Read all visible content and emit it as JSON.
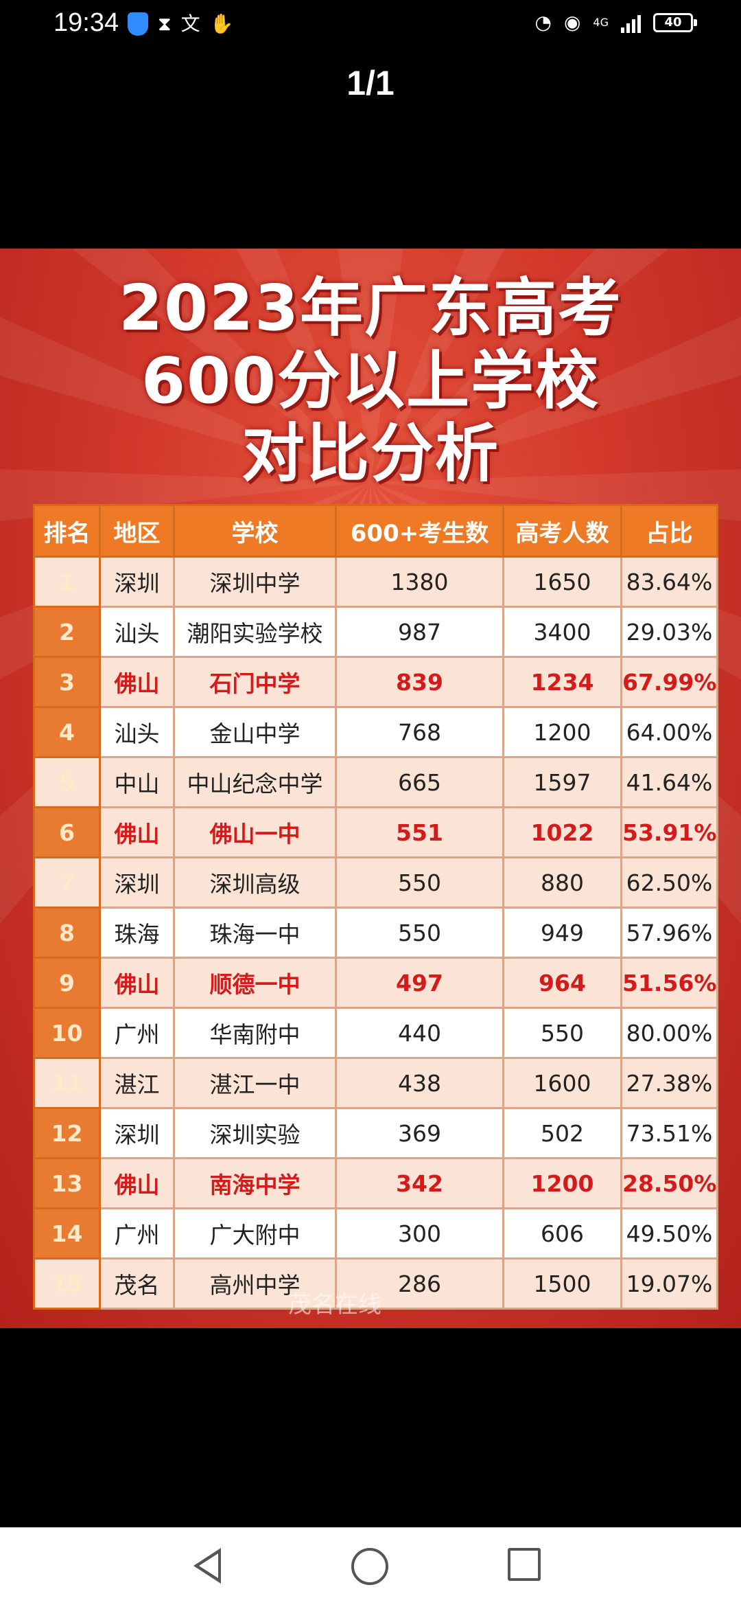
{
  "status_bar": {
    "time": "19:34",
    "network": "4G",
    "battery": "40",
    "icons": [
      "shield-icon",
      "hourglass-icon",
      "translate-icon",
      "hand-icon",
      "speed-icon",
      "eye-icon",
      "signal-icon",
      "battery-icon"
    ]
  },
  "viewer": {
    "counter": "1/1"
  },
  "poster": {
    "title_line1": "2023年广东高考",
    "title_line2": "600分以上学校",
    "title_line3": "对比分析",
    "watermark": "茂名在线",
    "headers": [
      "排名",
      "地区",
      "学校",
      "600+考生数",
      "高考人数",
      "占比"
    ],
    "rows": [
      {
        "rank": "1",
        "region": "深圳",
        "school": "深圳中学",
        "count600": "1380",
        "total": "1650",
        "ratio": "83.64%",
        "highlight": false
      },
      {
        "rank": "2",
        "region": "汕头",
        "school": "潮阳实验学校",
        "count600": "987",
        "total": "3400",
        "ratio": "29.03%",
        "highlight": false
      },
      {
        "rank": "3",
        "region": "佛山",
        "school": "石门中学",
        "count600": "839",
        "total": "1234",
        "ratio": "67.99%",
        "highlight": true
      },
      {
        "rank": "4",
        "region": "汕头",
        "school": "金山中学",
        "count600": "768",
        "total": "1200",
        "ratio": "64.00%",
        "highlight": false
      },
      {
        "rank": "5",
        "region": "中山",
        "school": "中山纪念中学",
        "count600": "665",
        "total": "1597",
        "ratio": "41.64%",
        "highlight": false
      },
      {
        "rank": "6",
        "region": "佛山",
        "school": "佛山一中",
        "count600": "551",
        "total": "1022",
        "ratio": "53.91%",
        "highlight": true
      },
      {
        "rank": "7",
        "region": "深圳",
        "school": "深圳高级",
        "count600": "550",
        "total": "880",
        "ratio": "62.50%",
        "highlight": false
      },
      {
        "rank": "8",
        "region": "珠海",
        "school": "珠海一中",
        "count600": "550",
        "total": "949",
        "ratio": "57.96%",
        "highlight": false
      },
      {
        "rank": "9",
        "region": "佛山",
        "school": "顺德一中",
        "count600": "497",
        "total": "964",
        "ratio": "51.56%",
        "highlight": true
      },
      {
        "rank": "10",
        "region": "广州",
        "school": "华南附中",
        "count600": "440",
        "total": "550",
        "ratio": "80.00%",
        "highlight": false
      },
      {
        "rank": "11",
        "region": "湛江",
        "school": "湛江一中",
        "count600": "438",
        "total": "1600",
        "ratio": "27.38%",
        "highlight": false
      },
      {
        "rank": "12",
        "region": "深圳",
        "school": "深圳实验",
        "count600": "369",
        "total": "502",
        "ratio": "73.51%",
        "highlight": false
      },
      {
        "rank": "13",
        "region": "佛山",
        "school": "南海中学",
        "count600": "342",
        "total": "1200",
        "ratio": "28.50%",
        "highlight": true
      },
      {
        "rank": "14",
        "region": "广州",
        "school": "广大附中",
        "count600": "300",
        "total": "606",
        "ratio": "49.50%",
        "highlight": false
      },
      {
        "rank": "15",
        "region": "茂名",
        "school": "高州中学",
        "count600": "286",
        "total": "1500",
        "ratio": "19.07%",
        "highlight": false
      }
    ],
    "colors": {
      "highlight_text": "#d41a1a",
      "header_bg": "#ee7a26",
      "poster_red": "#d2392b"
    }
  },
  "nav_bar": {
    "icons": [
      "back-icon",
      "home-icon",
      "recents-icon"
    ]
  }
}
